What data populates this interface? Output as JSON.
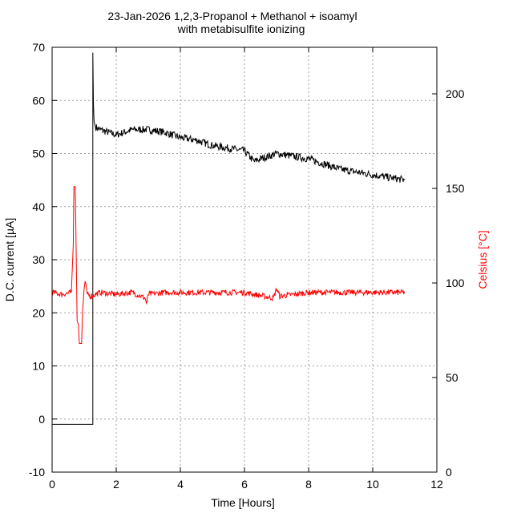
{
  "chart_data": {
    "type": "line",
    "title": [
      "23-Jan-2026 1,2,3-Propanol + Methanol + isoamyl",
      "with metabisulfite ionizing"
    ],
    "xlabel": "Time [Hours]",
    "ylabel": "D.C. current [µA]",
    "y2label": "Celsius [°C]",
    "xlim": [
      0,
      12
    ],
    "ylim": [
      -10,
      70
    ],
    "y2lim": [
      0,
      224.6
    ],
    "xticks": [
      0,
      2,
      4,
      6,
      8,
      10,
      12
    ],
    "yticks": [
      -10,
      0,
      10,
      20,
      30,
      40,
      50,
      60,
      70
    ],
    "y2ticks": [
      0,
      50,
      100,
      150,
      200
    ],
    "grid": true,
    "series": [
      {
        "name": "D.C. current",
        "axis": "y",
        "color": "#000000",
        "x": [
          0,
          1.27,
          1.27,
          1.29,
          1.31,
          1.35,
          1.5,
          2,
          2.5,
          3,
          3.5,
          4,
          4.5,
          5,
          5.5,
          6,
          6.3,
          6.5,
          7,
          7.5,
          8,
          8.5,
          9,
          9.5,
          10,
          10.5,
          11
        ],
        "y": [
          -1,
          -1,
          69,
          59,
          56,
          55,
          54.5,
          53.5,
          54.5,
          54.5,
          54,
          53,
          52.5,
          51.5,
          51,
          50.5,
          48.5,
          49,
          50,
          49.5,
          49,
          48,
          47,
          46.5,
          46,
          45.5,
          45
        ]
      },
      {
        "name": "Temperature",
        "axis": "y2",
        "color": "#ff0000",
        "x": [
          0,
          0.3,
          0.6,
          0.66,
          0.68,
          0.72,
          0.74,
          0.78,
          0.82,
          0.85,
          0.92,
          0.95,
          1.0,
          1.03,
          1.06,
          1.1,
          1.2,
          1.5,
          2,
          2.5,
          2.9,
          2.95,
          3,
          3.5,
          4,
          5,
          6,
          6.9,
          7,
          7.1,
          8,
          9,
          10,
          11
        ],
        "y": [
          95,
          94,
          95,
          120,
          151,
          151,
          130,
          80,
          78,
          68,
          68,
          85,
          97,
          101,
          99,
          94,
          93,
          95,
          94,
          95,
          92,
          89,
          94,
          95,
          95,
          95,
          95,
          92,
          97,
          93,
          95,
          95,
          95,
          95
        ]
      }
    ]
  }
}
